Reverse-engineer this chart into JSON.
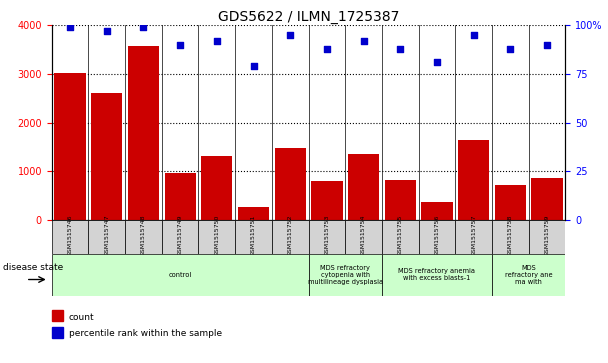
{
  "title": "GDS5622 / ILMN_1725387",
  "samples": [
    "GSM1515746",
    "GSM1515747",
    "GSM1515748",
    "GSM1515749",
    "GSM1515750",
    "GSM1515751",
    "GSM1515752",
    "GSM1515753",
    "GSM1515754",
    "GSM1515755",
    "GSM1515756",
    "GSM1515757",
    "GSM1515758",
    "GSM1515759"
  ],
  "counts": [
    3020,
    2600,
    3580,
    950,
    1320,
    270,
    1480,
    790,
    1360,
    820,
    370,
    1640,
    720,
    850
  ],
  "percentiles": [
    99,
    97,
    99,
    90,
    92,
    79,
    95,
    88,
    92,
    88,
    81,
    95,
    88,
    90
  ],
  "ylim_left": [
    0,
    4000
  ],
  "ylim_right": [
    0,
    100
  ],
  "yticks_left": [
    0,
    1000,
    2000,
    3000,
    4000
  ],
  "yticks_right": [
    0,
    25,
    50,
    75,
    100
  ],
  "bar_color": "#cc0000",
  "dot_color": "#0000cc",
  "disease_groups": [
    {
      "label": "control",
      "start": 0,
      "end": 7
    },
    {
      "label": "MDS refractory\ncytopenia with\nmultilineage dysplasia",
      "start": 7,
      "end": 9
    },
    {
      "label": "MDS refractory anemia\nwith excess blasts-1",
      "start": 9,
      "end": 12
    },
    {
      "label": "MDS\nrefractory ane\nma with",
      "start": 12,
      "end": 14
    }
  ],
  "disease_state_label": "disease state",
  "legend_count_label": "count",
  "legend_pct_label": "percentile rank within the sample",
  "tick_bg_color": "#d3d3d3",
  "disease_bg_color": "#ccffcc",
  "title_fontsize": 10,
  "tick_fontsize": 7,
  "label_fontsize": 6
}
